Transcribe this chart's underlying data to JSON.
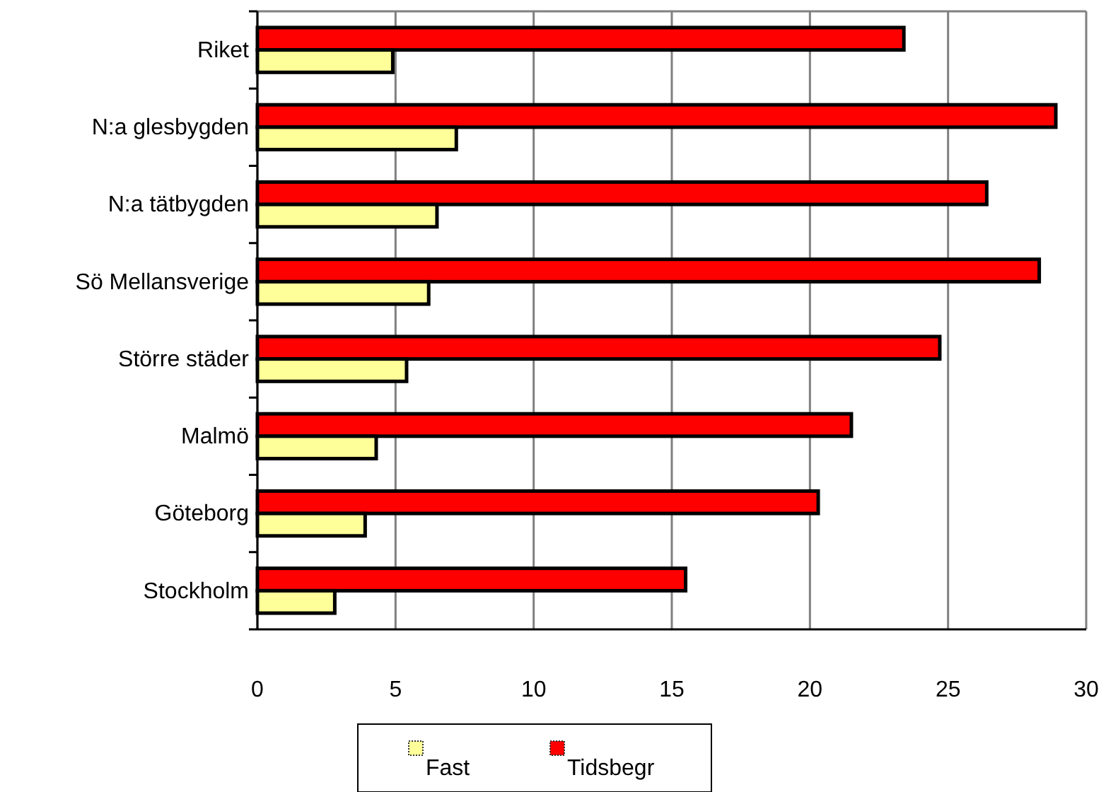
{
  "chart_data": {
    "type": "bar",
    "orientation": "horizontal",
    "categories": [
      "Riket",
      "N:a glesbygden",
      "N:a tätbygden",
      "Sö Mellansverige",
      "Större städer",
      "Malmö",
      "Göteborg",
      "Stockholm"
    ],
    "series": [
      {
        "name": "Fast",
        "color": "#ffff99",
        "values": [
          4.9,
          7.2,
          6.5,
          6.2,
          5.4,
          4.3,
          3.9,
          2.8
        ]
      },
      {
        "name": "Tidsbegr",
        "color": "#ff0000",
        "values": [
          23.4,
          28.9,
          26.4,
          28.3,
          24.7,
          21.5,
          20.3,
          15.5
        ]
      }
    ],
    "xlim": [
      0,
      30
    ],
    "xticks": [
      0,
      5,
      10,
      15,
      20,
      25,
      30
    ],
    "grid": "x",
    "legend": "bottom"
  }
}
